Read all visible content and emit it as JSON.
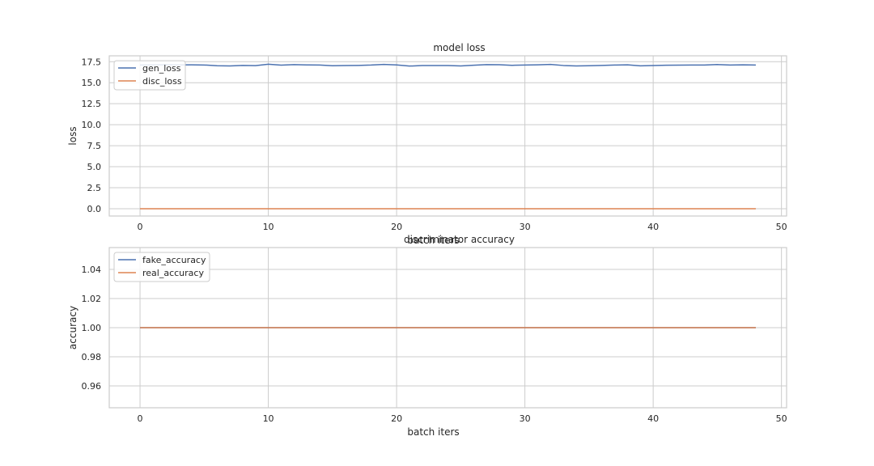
{
  "chart_data": [
    {
      "type": "line",
      "title": "model loss",
      "xlabel": "batch iters",
      "ylabel": "loss",
      "xlim": [
        -2.4,
        50.4
      ],
      "ylim": [
        -0.87,
        18.2
      ],
      "xticks": [
        0,
        10,
        20,
        30,
        40,
        50
      ],
      "yticks": [
        0.0,
        2.5,
        5.0,
        7.5,
        10.0,
        12.5,
        15.0,
        17.5
      ],
      "ytick_labels": [
        "0.0",
        "2.5",
        "5.0",
        "7.5",
        "10.0",
        "12.5",
        "15.0",
        "17.5"
      ],
      "grid": true,
      "legend_position": "top-left",
      "x": [
        0,
        1,
        2,
        3,
        4,
        5,
        6,
        7,
        8,
        9,
        10,
        11,
        12,
        13,
        14,
        15,
        16,
        17,
        18,
        19,
        20,
        21,
        22,
        23,
        24,
        25,
        26,
        27,
        28,
        29,
        30,
        31,
        32,
        33,
        34,
        35,
        36,
        37,
        38,
        39,
        40,
        41,
        42,
        43,
        44,
        45,
        46,
        47,
        48
      ],
      "series": [
        {
          "name": "gen_loss",
          "color": "#4c72b0",
          "values": [
            17.1,
            17.12,
            17.14,
            17.12,
            17.13,
            17.11,
            17.02,
            17.0,
            17.06,
            17.03,
            17.2,
            17.09,
            17.15,
            17.12,
            17.1,
            17.02,
            17.05,
            17.06,
            17.1,
            17.18,
            17.12,
            16.98,
            17.04,
            17.05,
            17.04,
            17.0,
            17.08,
            17.15,
            17.14,
            17.07,
            17.1,
            17.13,
            17.18,
            17.05,
            17.0,
            17.02,
            17.06,
            17.1,
            17.13,
            17.01,
            17.05,
            17.08,
            17.09,
            17.1,
            17.11,
            17.16,
            17.1,
            17.13,
            17.1
          ]
        },
        {
          "name": "disc_loss",
          "color": "#dd8452",
          "values": [
            0.0,
            0.0,
            0.0,
            0.0,
            0.0,
            0.0,
            0.0,
            0.0,
            0.0,
            0.0,
            0.0,
            0.0,
            0.0,
            0.0,
            0.0,
            0.0,
            0.0,
            0.0,
            0.0,
            0.0,
            0.0,
            0.0,
            0.0,
            0.0,
            0.0,
            0.0,
            0.0,
            0.0,
            0.0,
            0.0,
            0.0,
            0.0,
            0.0,
            0.0,
            0.0,
            0.0,
            0.0,
            0.0,
            0.0,
            0.0,
            0.0,
            0.0,
            0.0,
            0.0,
            0.0,
            0.0,
            0.0,
            0.0,
            0.0
          ]
        }
      ]
    },
    {
      "type": "line",
      "title": "discriminator accuracy",
      "xlabel": "batch iters",
      "ylabel": "accuracy",
      "xlim": [
        -2.4,
        50.4
      ],
      "ylim": [
        0.945,
        1.055
      ],
      "xticks": [
        0,
        10,
        20,
        30,
        40,
        50
      ],
      "yticks": [
        0.96,
        0.98,
        1.0,
        1.02,
        1.04
      ],
      "ytick_labels": [
        "0.96",
        "0.98",
        "1.00",
        "1.02",
        "1.04"
      ],
      "grid": true,
      "legend_position": "top-left",
      "x": [
        0,
        1,
        2,
        3,
        4,
        5,
        6,
        7,
        8,
        9,
        10,
        11,
        12,
        13,
        14,
        15,
        16,
        17,
        18,
        19,
        20,
        21,
        22,
        23,
        24,
        25,
        26,
        27,
        28,
        29,
        30,
        31,
        32,
        33,
        34,
        35,
        36,
        37,
        38,
        39,
        40,
        41,
        42,
        43,
        44,
        45,
        46,
        47,
        48
      ],
      "series": [
        {
          "name": "fake_accuracy",
          "color": "#4c72b0",
          "values": [
            1,
            1,
            1,
            1,
            1,
            1,
            1,
            1,
            1,
            1,
            1,
            1,
            1,
            1,
            1,
            1,
            1,
            1,
            1,
            1,
            1,
            1,
            1,
            1,
            1,
            1,
            1,
            1,
            1,
            1,
            1,
            1,
            1,
            1,
            1,
            1,
            1,
            1,
            1,
            1,
            1,
            1,
            1,
            1,
            1,
            1,
            1,
            1,
            1
          ]
        },
        {
          "name": "real_accuracy",
          "color": "#dd8452",
          "values": [
            1,
            1,
            1,
            1,
            1,
            1,
            1,
            1,
            1,
            1,
            1,
            1,
            1,
            1,
            1,
            1,
            1,
            1,
            1,
            1,
            1,
            1,
            1,
            1,
            1,
            1,
            1,
            1,
            1,
            1,
            1,
            1,
            1,
            1,
            1,
            1,
            1,
            1,
            1,
            1,
            1,
            1,
            1,
            1,
            1,
            1,
            1,
            1,
            1
          ]
        }
      ]
    }
  ]
}
